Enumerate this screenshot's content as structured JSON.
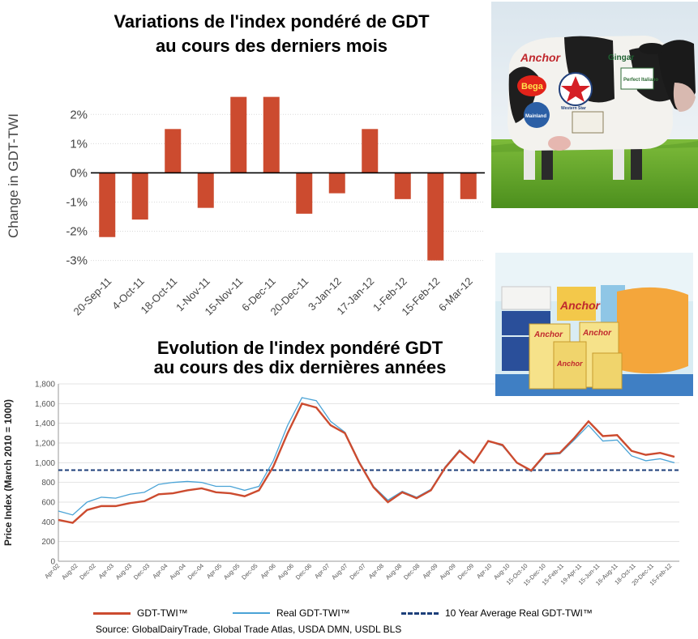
{
  "chart_data": [
    {
      "type": "bar",
      "title": "Variations de l'index pondéré de GDT au cours des derniers mois",
      "title_lines": [
        "Variations de l'index pondéré de GDT",
        "au cours des derniers mois"
      ],
      "ylabel": "Change in GDT-TWI",
      "xlabel": "",
      "ylim": [
        -3.4,
        3.2
      ],
      "yticks": [
        2,
        1,
        0,
        -1,
        -2,
        -3
      ],
      "ytick_labels": [
        "2%",
        "1%",
        "0%",
        "-1%",
        "-2%",
        "-3%"
      ],
      "categories": [
        "20-Sep-11",
        "4-Oct-11",
        "18-Oct-11",
        "1-Nov-11",
        "15-Nov-11",
        "6-Dec-11",
        "20-Dec-11",
        "3-Jan-12",
        "17-Jan-12",
        "1-Feb-12",
        "15-Feb-12",
        "6-Mar-12"
      ],
      "values": [
        -2.2,
        -1.6,
        1.5,
        -1.2,
        2.6,
        2.6,
        -1.4,
        -0.7,
        1.5,
        -0.9,
        -3.0,
        -0.9
      ],
      "grid": true,
      "color": "#cc4b2f"
    },
    {
      "type": "line",
      "title": "Evolution de l'index pondéré GDT au cours des dix dernières années",
      "title_lines": [
        "Evolution de l'index pondéré GDT",
        "au cours des dix dernières années"
      ],
      "ylabel": "Price Index (March 2010 = 1000)",
      "xlabel": "",
      "ylim": [
        0,
        1800
      ],
      "yticks": [
        0,
        200,
        400,
        600,
        800,
        1000,
        1200,
        1400,
        1600,
        1800
      ],
      "ytick_labels": [
        "0",
        "200",
        "400",
        "600",
        "800",
        "1,000",
        "1,200",
        "1,400",
        "1,600",
        "1,800"
      ],
      "x_labels": [
        "Apr-02",
        "Aug-02",
        "Dec-02",
        "Apr-03",
        "Aug-03",
        "Dec-03",
        "Apr-04",
        "Aug-04",
        "Dec-04",
        "Apr-05",
        "Aug-05",
        "Dec-05",
        "Apr-06",
        "Aug-06",
        "Dec-06",
        "Apr-07",
        "Aug-07",
        "Dec-07",
        "Apr-08",
        "Aug-08",
        "Dec-08",
        "Apr-09",
        "Aug-09",
        "Dec-09",
        "Apr-10",
        "Aug-10",
        "15-Oct-10",
        "15-Dec-10",
        "15-Feb-11",
        "19-Apr-11",
        "15-Jun-11",
        "16-Aug-11",
        "18-Oct-11",
        "20-Dec-11",
        "15-Feb-12"
      ],
      "x": [
        "Apr-02",
        "Aug-02",
        "Dec-02",
        "Apr-03",
        "Aug-03",
        "Dec-03",
        "Apr-04",
        "Aug-04",
        "Dec-04",
        "Apr-05",
        "Aug-05",
        "Dec-05",
        "Apr-06",
        "Aug-06",
        "Dec-06",
        "Apr-07",
        "Jun-07",
        "Aug-07",
        "Oct-07",
        "Dec-07",
        "Apr-08",
        "Aug-08",
        "Oct-08",
        "Dec-08",
        "Feb-09",
        "Apr-09",
        "Jun-09",
        "Aug-09",
        "Oct-09",
        "Dec-09",
        "Feb-10",
        "Apr-10",
        "Jun-10",
        "Aug-10",
        "15-Oct-10",
        "15-Dec-10",
        "15-Feb-11",
        "19-Apr-11",
        "15-Jun-11",
        "16-Aug-11",
        "18-Oct-11",
        "20-Dec-11",
        "15-Feb-12",
        "6-Mar-12"
      ],
      "series": [
        {
          "name": "GDT-TWI™",
          "color": "#cc4b2f",
          "values": [
            420,
            390,
            520,
            560,
            560,
            590,
            610,
            680,
            690,
            720,
            740,
            700,
            690,
            660,
            720,
            960,
            1300,
            1600,
            1560,
            1380,
            1300,
            1000,
            750,
            600,
            700,
            640,
            720,
            950,
            1120,
            1000,
            1220,
            1180,
            1000,
            920,
            1090,
            1100,
            1250,
            1420,
            1270,
            1280,
            1120,
            1080,
            1100,
            1060
          ]
        },
        {
          "name": "Real GDT-TWI™",
          "color": "#4aa3d6",
          "values": [
            510,
            470,
            600,
            650,
            640,
            680,
            700,
            780,
            800,
            810,
            800,
            760,
            760,
            720,
            760,
            1020,
            1380,
            1660,
            1630,
            1420,
            1310,
            1010,
            760,
            620,
            710,
            650,
            730,
            960,
            1130,
            1000,
            1220,
            1170,
            1000,
            910,
            1080,
            1090,
            1230,
            1380,
            1220,
            1230,
            1070,
            1020,
            1040,
            1000
          ]
        },
        {
          "name": "10 Year Average Real GDT-TWI™",
          "color": "#1d3f7a",
          "constant": 925
        }
      ],
      "legend": [
        "GDT-TWI™",
        "Real GDT-TWI™",
        "10 Year Average Real GDT-TWI™"
      ],
      "legend_placement": "bottom",
      "source": "Source: GlobalDairyTrade, Global Trade Atlas, USDA DMN, USDL BLS",
      "grid": true
    }
  ],
  "photos": {
    "cow": {
      "label": "cow-photo",
      "brand_labels": [
        "Anchor",
        "Gingar",
        "Perfect Italiano",
        "Bega",
        "Western Star",
        "Mainland"
      ]
    },
    "cheese": {
      "label": "cheese-products-photo",
      "brand_labels": [
        "Anchor",
        "Anchor",
        "Anchor",
        "Anchor"
      ]
    }
  }
}
